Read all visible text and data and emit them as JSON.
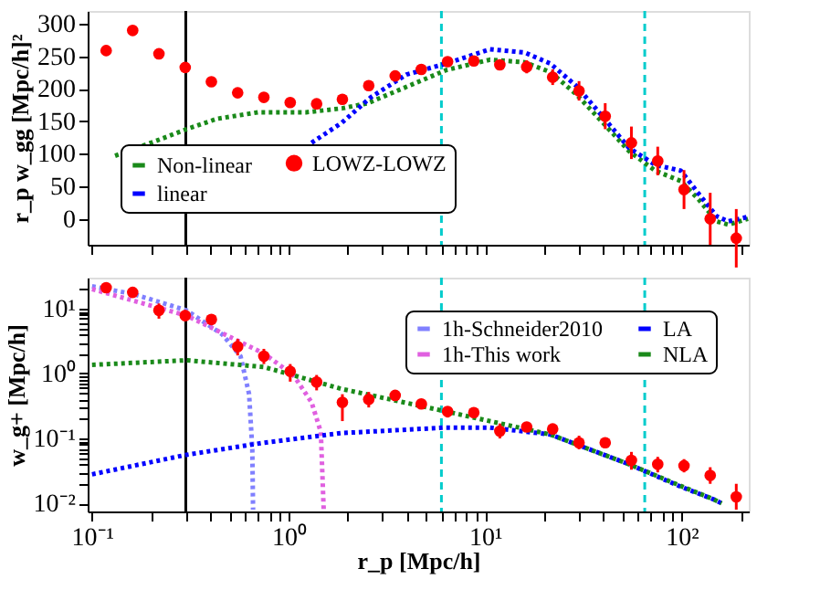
{
  "chart_data": [
    {
      "type": "line",
      "ylabel": "r_p w_gg [Mpc/h]²",
      "xlim": [
        0.095,
        220
      ],
      "ylim": [
        -40,
        320
      ],
      "log": "x",
      "grid": false,
      "legend": "bottom left",
      "tick_labels": "y",
      "marker": "none",
      "line_style": "dotted",
      "xticks": [
        {
          "value": 0.1,
          "label": null
        },
        {
          "value": 0.2,
          "label": null
        },
        {
          "value": 0.3,
          "label": null
        },
        {
          "value": 0.4,
          "label": null
        },
        {
          "value": 0.5,
          "label": null
        },
        {
          "value": 0.6,
          "label": null
        },
        {
          "value": 0.7,
          "label": null
        },
        {
          "value": 0.8,
          "label": null
        },
        {
          "value": 0.9,
          "label": null
        },
        {
          "value": 1,
          "label": null
        },
        {
          "value": 2,
          "label": null
        },
        {
          "value": 3,
          "label": null
        },
        {
          "value": 4,
          "label": null
        },
        {
          "value": 5,
          "label": null
        },
        {
          "value": 6,
          "label": null
        },
        {
          "value": 7,
          "label": null
        },
        {
          "value": 8,
          "label": null
        },
        {
          "value": 9,
          "label": null
        },
        {
          "value": 10,
          "label": null
        },
        {
          "value": 20,
          "label": null
        },
        {
          "value": 30,
          "label": null
        },
        {
          "value": 40,
          "label": null
        },
        {
          "value": 50,
          "label": null
        },
        {
          "value": 60,
          "label": null
        },
        {
          "value": 70,
          "label": null
        },
        {
          "value": 80,
          "label": null
        },
        {
          "value": 90,
          "label": null
        },
        {
          "value": 100,
          "label": null
        },
        {
          "value": 200,
          "label": null
        }
      ],
      "yticks": [
        0,
        50,
        100,
        150,
        200,
        250,
        300
      ],
      "ref_lines": [
        {
          "axis": "x",
          "value": 0.3,
          "color": "#000000",
          "line_style": "solid"
        },
        {
          "axis": "x",
          "value": 6,
          "color": "#00cccc",
          "line_style": "dashed"
        },
        {
          "axis": "x",
          "value": 65,
          "color": "#00cccc",
          "line_style": "dashed"
        }
      ],
      "series": [
        {
          "name": "Non-linear",
          "type": "line",
          "color": "#1a8a1a",
          "x": [
            0.131,
            0.212,
            0.303,
            0.433,
            0.7,
            1.23,
            1.87,
            2.53,
            6.35,
            10.6,
            15.9,
            21.5,
            29.3,
            39.8,
            54.1,
            73.6,
            99.3,
            122,
            151,
            173,
            218
          ],
          "values": [
            97,
            120,
            138,
            154,
            164,
            164,
            170,
            178,
            229,
            245,
            241,
            226,
            191,
            148,
            104,
            74,
            58,
            30,
            -4,
            -9,
            0
          ]
        },
        {
          "name": "linear",
          "type": "line",
          "color": "#0000ff",
          "x": [
            1.31,
            1.87,
            2.62,
            3.98,
            6.35,
            10.6,
            15.9,
            21.5,
            29.3,
            39.8,
            54.1,
            73.6,
            99.3,
            122,
            151,
            173,
            218
          ],
          "values": [
            117,
            148,
            187,
            222,
            239,
            261,
            256,
            239,
            204,
            157,
            109,
            83,
            74,
            39,
            4,
            -4,
            3
          ]
        },
        {
          "name": "LOWZ-LOWZ",
          "type": "scatter",
          "marker": "circle",
          "color": "#ff0000",
          "x": [
            0.118,
            0.161,
            0.219,
            0.298,
            0.405,
            0.551,
            0.749,
            1.02,
            1.39,
            1.88,
            2.56,
            3.49,
            4.74,
            6.45,
            8.77,
            11.9,
            16.3,
            22.1,
            30.1,
            40.9,
            55.6,
            75.7,
            103,
            140,
            190
          ],
          "values": [
            259,
            290,
            254,
            233,
            211,
            194,
            187,
            179,
            177,
            184,
            205,
            220,
            230,
            242,
            243,
            237,
            234,
            218,
            197,
            158,
            117,
            89,
            45,
            0,
            -30
          ],
          "errors": [
            8,
            7,
            6,
            6,
            5,
            5,
            5,
            5,
            5,
            5,
            5,
            5,
            5,
            6,
            7,
            8,
            10,
            12,
            15,
            20,
            25,
            22,
            30,
            40,
            45
          ]
        }
      ]
    },
    {
      "type": "line",
      "xlabel": "r_p [Mpc/h]",
      "ylabel": "w_g+ [Mpc/h]",
      "xlim": [
        0.095,
        220
      ],
      "ylim": [
        0.0075,
        30
      ],
      "log": "xy",
      "grid": false,
      "legend": "top right",
      "marker": "none",
      "line_style": "dotted",
      "xticks": [
        {
          "value": 0.1,
          "label": "10⁻¹"
        },
        {
          "value": 0.2,
          "label": null
        },
        {
          "value": 0.3,
          "label": null
        },
        {
          "value": 0.4,
          "label": null
        },
        {
          "value": 0.5,
          "label": null
        },
        {
          "value": 0.6,
          "label": null
        },
        {
          "value": 0.7,
          "label": null
        },
        {
          "value": 0.8,
          "label": null
        },
        {
          "value": 0.9,
          "label": null
        },
        {
          "value": 1,
          "label": "10⁰"
        },
        {
          "value": 2,
          "label": null
        },
        {
          "value": 3,
          "label": null
        },
        {
          "value": 4,
          "label": null
        },
        {
          "value": 5,
          "label": null
        },
        {
          "value": 6,
          "label": null
        },
        {
          "value": 7,
          "label": null
        },
        {
          "value": 8,
          "label": null
        },
        {
          "value": 9,
          "label": null
        },
        {
          "value": 10,
          "label": "10¹"
        },
        {
          "value": 20,
          "label": null
        },
        {
          "value": 30,
          "label": null
        },
        {
          "value": 40,
          "label": null
        },
        {
          "value": 50,
          "label": null
        },
        {
          "value": 60,
          "label": null
        },
        {
          "value": 70,
          "label": null
        },
        {
          "value": 80,
          "label": null
        },
        {
          "value": 90,
          "label": null
        },
        {
          "value": 100,
          "label": "10²"
        },
        {
          "value": 200,
          "label": null
        }
      ],
      "yticks": [
        {
          "value": 0.01,
          "label": "10⁻²"
        },
        {
          "value": 0.02,
          "label": null
        },
        {
          "value": 0.03,
          "label": null
        },
        {
          "value": 0.04,
          "label": null
        },
        {
          "value": 0.05,
          "label": null
        },
        {
          "value": 0.06,
          "label": null
        },
        {
          "value": 0.07,
          "label": null
        },
        {
          "value": 0.08,
          "label": null
        },
        {
          "value": 0.09,
          "label": null
        },
        {
          "value": 0.1,
          "label": "10⁻¹"
        },
        {
          "value": 0.2,
          "label": null
        },
        {
          "value": 0.3,
          "label": null
        },
        {
          "value": 0.4,
          "label": null
        },
        {
          "value": 0.5,
          "label": null
        },
        {
          "value": 0.6,
          "label": null
        },
        {
          "value": 0.7,
          "label": null
        },
        {
          "value": 0.8,
          "label": null
        },
        {
          "value": 0.9,
          "label": null
        },
        {
          "value": 1,
          "label": "10⁰"
        },
        {
          "value": 2,
          "label": null
        },
        {
          "value": 3,
          "label": null
        },
        {
          "value": 4,
          "label": null
        },
        {
          "value": 5,
          "label": null
        },
        {
          "value": 6,
          "label": null
        },
        {
          "value": 7,
          "label": null
        },
        {
          "value": 8,
          "label": null
        },
        {
          "value": 9,
          "label": null
        },
        {
          "value": 10,
          "label": "10¹"
        },
        {
          "value": 20,
          "label": null
        }
      ],
      "ref_lines": [
        {
          "axis": "x",
          "value": 0.3,
          "color": "#000000",
          "line_style": "solid"
        },
        {
          "axis": "x",
          "value": 6,
          "color": "#00cccc",
          "line_style": "dashed"
        },
        {
          "axis": "x",
          "value": 65,
          "color": "#00cccc",
          "line_style": "dashed"
        }
      ],
      "series": [
        {
          "name": "1h-Schneider2010",
          "type": "line",
          "color": "#8080ff",
          "x": [
            0.1,
            0.162,
            0.303,
            0.46,
            0.57,
            0.63,
            0.654,
            0.66
          ],
          "values": [
            22,
            16.8,
            9.4,
            4,
            1.85,
            0.48,
            0.07,
            0.008
          ]
        },
        {
          "name": "1h-This work",
          "type": "line",
          "color": "#e060e0",
          "x": [
            0.1,
            0.303,
            0.75,
            1.06,
            1.31,
            1.46,
            1.51
          ],
          "values": [
            20,
            7.8,
            2.03,
            0.94,
            0.36,
            0.126,
            0.008
          ]
        },
        {
          "name": "LA",
          "type": "line",
          "color": "#0000ff",
          "x": [
            0.1,
            0.303,
            0.75,
            1.86,
            6.35,
            10.6,
            21.5,
            54.1,
            99.3,
            146,
            160
          ],
          "values": [
            0.028,
            0.056,
            0.086,
            0.121,
            0.147,
            0.147,
            0.115,
            0.04,
            0.018,
            0.0115,
            0.01
          ]
        },
        {
          "name": "NLA",
          "type": "line",
          "color": "#1a8a1a",
          "x": [
            0.1,
            0.303,
            0.75,
            1.86,
            6.35,
            21.5,
            54.1,
            99.3,
            146,
            160
          ],
          "values": [
            1.36,
            1.6,
            1.26,
            0.58,
            0.26,
            0.115,
            0.04,
            0.0185,
            0.0115,
            0.01
          ]
        },
        {
          "type": "scatter",
          "marker": "circle",
          "color": "#ff0000",
          "x": [
            0.118,
            0.161,
            0.219,
            0.298,
            0.405,
            0.551,
            0.749,
            1.02,
            1.39,
            1.88,
            2.56,
            3.49,
            4.74,
            6.45,
            8.77,
            11.9,
            16.3,
            22.1,
            30.1,
            40.9,
            55.6,
            75.7,
            103,
            140,
            190
          ],
          "values": [
            21,
            17.8,
            9.4,
            7.8,
            6.8,
            2.6,
            1.85,
            1.08,
            0.74,
            0.36,
            0.4,
            0.46,
            0.34,
            0.26,
            0.25,
            0.13,
            0.15,
            0.14,
            0.086,
            0.086,
            0.046,
            0.04,
            0.038,
            0.027,
            0.0126
          ],
          "errors": [
            [
              18,
              24
            ],
            [
              15,
              21
            ],
            [
              7,
              12
            ],
            [
              6.5,
              9.5
            ],
            [
              5.8,
              7.8
            ],
            [
              1.9,
              3.4
            ],
            [
              1.4,
              2.4
            ],
            [
              0.75,
              1.4
            ],
            [
              0.55,
              0.95
            ],
            [
              0.185,
              0.48
            ],
            [
              0.3,
              0.52
            ],
            [
              0.4,
              0.54
            ],
            [
              0.29,
              0.4
            ],
            [
              0.21,
              0.31
            ],
            [
              0.21,
              0.29
            ],
            [
              0.1,
              0.17
            ],
            [
              0.13,
              0.17
            ],
            [
              0.12,
              0.16
            ],
            [
              0.068,
              0.11
            ],
            [
              0.075,
              0.1
            ],
            [
              0.033,
              0.062
            ],
            [
              0.03,
              0.052
            ],
            [
              0.03,
              0.048
            ],
            [
              0.02,
              0.036
            ],
            [
              0.008,
              0.02
            ]
          ]
        }
      ]
    }
  ]
}
